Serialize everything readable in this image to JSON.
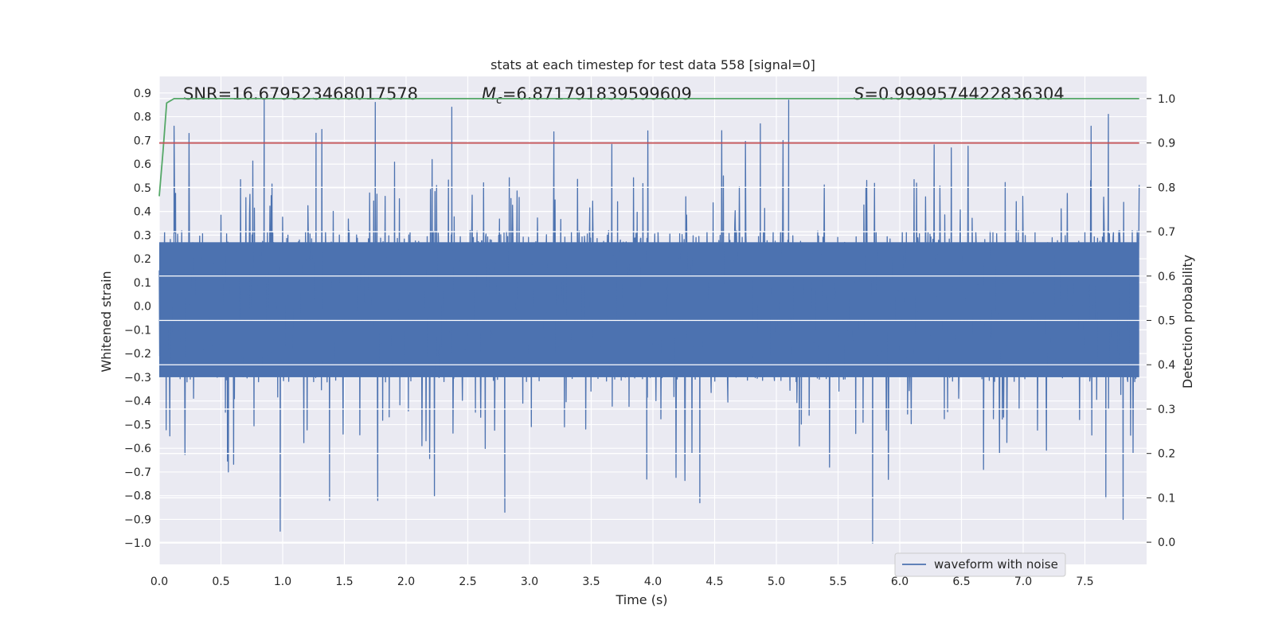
{
  "chart_data": {
    "type": "line",
    "title": "stats at each timestep for test data 558 [signal=0]",
    "xlabel": "Time (s)",
    "ylabel": "Whitened strain",
    "y2label": "Detection probability",
    "xlim": [
      0.0,
      8.0
    ],
    "ylim": [
      -1.09,
      0.97
    ],
    "y2lim": [
      -0.05,
      1.05
    ],
    "xticks": [
      0.0,
      0.5,
      1.0,
      1.5,
      2.0,
      2.5,
      3.0,
      3.5,
      4.0,
      4.5,
      5.0,
      5.5,
      6.0,
      6.5,
      7.0,
      7.5
    ],
    "xtick_labels": [
      "0.0",
      "0.5",
      "1.0",
      "1.5",
      "2.0",
      "2.5",
      "3.0",
      "3.5",
      "4.0",
      "4.5",
      "5.0",
      "5.5",
      "6.0",
      "6.5",
      "7.0",
      "7.5"
    ],
    "yticks": [
      0.9,
      0.8,
      0.7,
      0.6,
      0.5,
      0.4,
      0.3,
      0.2,
      0.1,
      0.0,
      -0.1,
      -0.2,
      -0.3,
      -0.4,
      -0.5,
      -0.6,
      -0.7,
      -0.8,
      -0.9,
      -1.0
    ],
    "ytick_labels": [
      "0.9",
      "0.8",
      "0.7",
      "0.6",
      "0.5",
      "0.4",
      "0.3",
      "0.2",
      "0.1",
      "0.0",
      "−0.1",
      "−0.2",
      "−0.3",
      "−0.4",
      "−0.5",
      "−0.6",
      "−0.7",
      "−0.8",
      "−0.9",
      "−1.0"
    ],
    "y2ticks": [
      1.0,
      0.9,
      0.8,
      0.7,
      0.6,
      0.5,
      0.4,
      0.3,
      0.2,
      0.1,
      0.0
    ],
    "y2tick_labels": [
      "1.0",
      "0.9",
      "0.8",
      "0.7",
      "0.6",
      "0.5",
      "0.4",
      "0.3",
      "0.2",
      "0.1",
      "0.0"
    ],
    "annotations": {
      "snr": "SNR=16.679523468017578",
      "mc_symbol": "M",
      "mc_sub": "c",
      "mc_value": "=6.871791839599609",
      "s_symbol": "S",
      "s_value": "=0.9999574422836304"
    },
    "legend": {
      "label": "waveform with noise",
      "location": "lower-right"
    },
    "series": [
      {
        "name": "waveform with noise",
        "axis": "left",
        "color": "#4c72b0",
        "kind": "noise",
        "duration_s": 8.0,
        "typical_amplitude": 0.32,
        "peaks": [
          {
            "t": 0.85,
            "v": 0.87
          },
          {
            "t": 1.75,
            "v": 0.86
          },
          {
            "t": 2.37,
            "v": 0.84
          },
          {
            "t": 5.1,
            "v": 0.87
          },
          {
            "t": 4.87,
            "v": 0.77
          },
          {
            "t": 7.69,
            "v": 0.81
          },
          {
            "t": 0.12,
            "v": 0.76
          },
          {
            "t": 7.55,
            "v": 0.76
          },
          {
            "t": 1.27,
            "v": 0.73
          },
          {
            "t": 0.98,
            "v": -0.95
          },
          {
            "t": 5.78,
            "v": -1.0
          },
          {
            "t": 2.8,
            "v": -0.87
          },
          {
            "t": 7.81,
            "v": -0.9
          },
          {
            "t": 1.38,
            "v": -0.82
          },
          {
            "t": 1.77,
            "v": -0.82
          },
          {
            "t": 4.38,
            "v": -0.83
          },
          {
            "t": 7.67,
            "v": -0.81
          },
          {
            "t": 2.23,
            "v": -0.8
          },
          {
            "t": 0.56,
            "v": -0.7
          },
          {
            "t": 3.95,
            "v": -0.73
          }
        ]
      },
      {
        "name": "detection probability",
        "axis": "right",
        "color": "#55a868",
        "x": [
          0.0,
          0.03,
          0.06,
          0.12,
          0.2,
          1.0,
          2.0,
          3.0,
          4.0,
          5.0,
          6.0,
          7.0,
          7.94
        ],
        "y": [
          0.78,
          0.88,
          0.99,
          1.0,
          1.0,
          1.0,
          1.0,
          1.0,
          1.0,
          1.0,
          1.0,
          1.0,
          1.0
        ]
      },
      {
        "name": "threshold",
        "axis": "right",
        "color": "#c44e52",
        "x": [
          0.0,
          7.94
        ],
        "y": [
          0.9,
          0.9
        ]
      }
    ]
  }
}
